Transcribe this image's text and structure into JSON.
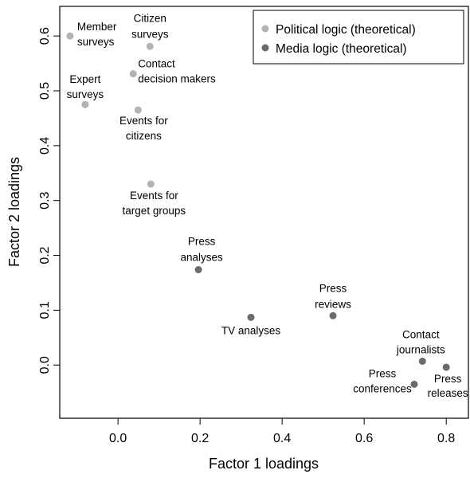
{
  "chart_data": {
    "type": "scatter",
    "x_label": "Factor 1 loadings",
    "y_label": "Factor 2 loadings",
    "xlim": [
      -0.142,
      0.854
    ],
    "ylim": [
      -0.097,
      0.654
    ],
    "xticks": [
      {
        "value": 0,
        "label": "0.0"
      },
      0.2,
      0.4,
      0.6,
      0.8
    ],
    "yticks": [
      {
        "value": 0,
        "label": "0.0"
      },
      0.1,
      0.2,
      0.3,
      0.4,
      0.5,
      0.6
    ],
    "legend": "top-right",
    "series": [
      {
        "name": "Political logic (theoretical)",
        "color": "#b3b3b3",
        "x": [
          -0.117,
          0.078,
          0.037,
          -0.08,
          0.049,
          0.08
        ],
        "y": [
          0.6,
          0.581,
          0.531,
          0.475,
          0.465,
          0.33
        ],
        "labels": [
          [
            "Member",
            "surveys"
          ],
          [
            "Citizen",
            "surveys"
          ],
          [
            "Contact",
            "decision makers"
          ],
          [
            "Expert",
            "surveys"
          ],
          [
            "Events for",
            "citizens"
          ],
          [
            "Events for",
            "target groups"
          ]
        ]
      },
      {
        "name": "Media logic (theoretical)",
        "color": "#6b6b6b",
        "x": [
          0.196,
          0.324,
          0.524,
          0.742,
          0.722,
          0.8
        ],
        "y": [
          0.174,
          0.087,
          0.09,
          0.007,
          -0.035,
          -0.004
        ],
        "labels": [
          [
            "Press",
            "analyses"
          ],
          [
            "TV analyses"
          ],
          [
            "Press",
            "reviews"
          ],
          [
            "Contact",
            "journalists"
          ],
          [
            "Press",
            "conferences"
          ],
          [
            "Press",
            "releases"
          ]
        ]
      }
    ]
  }
}
